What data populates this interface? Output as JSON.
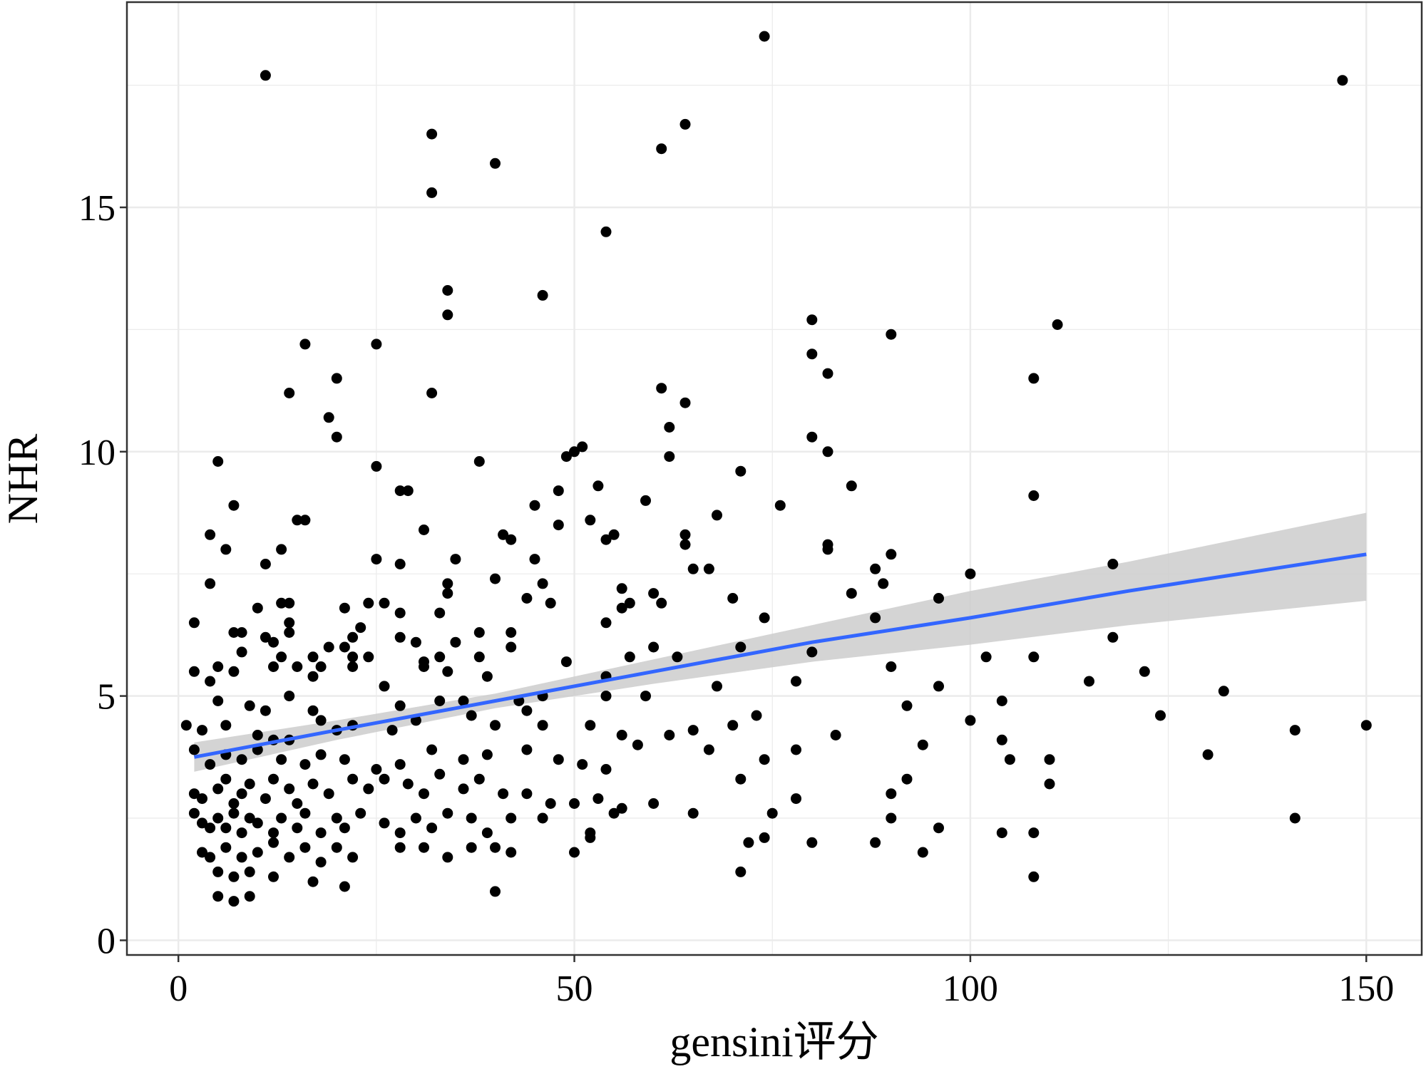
{
  "chart_data": {
    "type": "scatter",
    "xlabel": "gensini评分",
    "ylabel": "NHR",
    "xlim": [
      -6.5,
      157
    ],
    "ylim": [
      -0.3,
      19.2
    ],
    "x_ticks": [
      0,
      50,
      100,
      150
    ],
    "y_ticks": [
      0,
      5,
      10,
      15
    ],
    "x_tick_labels": [
      "0",
      "50",
      "100",
      "150"
    ],
    "y_tick_labels": [
      "0",
      "5",
      "10",
      "15"
    ],
    "grid": true,
    "legend": "none",
    "colors": {
      "points": "#000000",
      "fit_line": "#3366FF",
      "confidence_band": "#cccccc",
      "grid": "#ebebeb",
      "panel_border": "#333333"
    },
    "fit": {
      "method": "linear regression",
      "x": [
        2,
        20,
        40,
        60,
        80,
        100,
        120,
        150
      ],
      "y": [
        3.75,
        4.3,
        4.9,
        5.5,
        6.1,
        6.6,
        7.15,
        7.9
      ],
      "lower": [
        3.45,
        4.1,
        4.75,
        5.25,
        5.7,
        6.05,
        6.45,
        6.95
      ],
      "upper": [
        4.05,
        4.5,
        5.05,
        5.75,
        6.45,
        7.15,
        7.75,
        8.75
      ]
    },
    "points": [
      [
        11,
        17.7
      ],
      [
        74,
        18.5
      ],
      [
        147,
        17.6
      ],
      [
        32,
        16.5
      ],
      [
        64,
        16.7
      ],
      [
        61,
        16.2
      ],
      [
        40,
        15.9
      ],
      [
        32,
        15.3
      ],
      [
        54,
        14.5
      ],
      [
        34,
        13.3
      ],
      [
        46,
        13.2
      ],
      [
        34,
        12.8
      ],
      [
        80,
        12.7
      ],
      [
        111,
        12.6
      ],
      [
        90,
        12.4
      ],
      [
        16,
        12.2
      ],
      [
        25,
        12.2
      ],
      [
        80,
        12.0
      ],
      [
        82,
        11.6
      ],
      [
        108,
        11.5
      ],
      [
        20,
        11.5
      ],
      [
        14,
        11.2
      ],
      [
        32,
        11.2
      ],
      [
        61,
        11.3
      ],
      [
        64,
        11.0
      ],
      [
        19,
        10.7
      ],
      [
        62,
        10.5
      ],
      [
        20,
        10.3
      ],
      [
        80,
        10.3
      ],
      [
        51,
        10.1
      ],
      [
        50,
        10.0
      ],
      [
        82,
        10.0
      ],
      [
        5,
        9.8
      ],
      [
        38,
        9.8
      ],
      [
        25,
        9.7
      ],
      [
        49,
        9.9
      ],
      [
        62,
        9.9
      ],
      [
        71,
        9.6
      ],
      [
        53,
        9.3
      ],
      [
        28,
        9.2
      ],
      [
        29,
        9.2
      ],
      [
        48,
        9.2
      ],
      [
        85,
        9.3
      ],
      [
        108,
        9.1
      ],
      [
        59,
        9.0
      ],
      [
        45,
        8.9
      ],
      [
        76,
        8.9
      ],
      [
        7,
        8.9
      ],
      [
        16,
        8.6
      ],
      [
        15,
        8.6
      ],
      [
        52,
        8.6
      ],
      [
        68,
        8.7
      ],
      [
        48,
        8.5
      ],
      [
        31,
        8.4
      ],
      [
        41,
        8.3
      ],
      [
        42,
        8.2
      ],
      [
        4,
        8.3
      ],
      [
        55,
        8.3
      ],
      [
        64,
        8.3
      ],
      [
        54,
        8.2
      ],
      [
        64,
        8.1
      ],
      [
        82,
        8.1
      ],
      [
        6,
        8.0
      ],
      [
        13,
        8.0
      ],
      [
        82,
        8.0
      ],
      [
        90,
        7.9
      ],
      [
        35,
        7.8
      ],
      [
        25,
        7.8
      ],
      [
        45,
        7.8
      ],
      [
        11,
        7.7
      ],
      [
        28,
        7.7
      ],
      [
        118,
        7.7
      ],
      [
        88,
        7.6
      ],
      [
        65,
        7.6
      ],
      [
        67,
        7.6
      ],
      [
        100,
        7.5
      ],
      [
        40,
        7.4
      ],
      [
        4,
        7.3
      ],
      [
        34,
        7.3
      ],
      [
        46,
        7.3
      ],
      [
        89,
        7.3
      ],
      [
        56,
        7.2
      ],
      [
        34,
        7.1
      ],
      [
        44,
        7.0
      ],
      [
        60,
        7.1
      ],
      [
        85,
        7.1
      ],
      [
        13,
        6.9
      ],
      [
        14,
        6.9
      ],
      [
        24,
        6.9
      ],
      [
        26,
        6.9
      ],
      [
        57,
        6.9
      ],
      [
        47,
        6.9
      ],
      [
        70,
        7.0
      ],
      [
        96,
        7.0
      ],
      [
        10,
        6.8
      ],
      [
        21,
        6.8
      ],
      [
        28,
        6.7
      ],
      [
        33,
        6.7
      ],
      [
        56,
        6.8
      ],
      [
        61,
        6.9
      ],
      [
        74,
        6.6
      ],
      [
        88,
        6.6
      ],
      [
        2,
        6.5
      ],
      [
        14,
        6.5
      ],
      [
        54,
        6.5
      ],
      [
        23,
        6.4
      ],
      [
        7,
        6.3
      ],
      [
        8,
        6.3
      ],
      [
        14,
        6.3
      ],
      [
        11,
        6.2
      ],
      [
        22,
        6.2
      ],
      [
        28,
        6.2
      ],
      [
        30,
        6.1
      ],
      [
        38,
        6.3
      ],
      [
        42,
        6.3
      ],
      [
        118,
        6.2
      ],
      [
        12,
        6.1
      ],
      [
        19,
        6.0
      ],
      [
        21,
        6.0
      ],
      [
        35,
        6.1
      ],
      [
        42,
        6.0
      ],
      [
        60,
        6.0
      ],
      [
        71,
        6.0
      ],
      [
        80,
        5.9
      ],
      [
        8,
        5.9
      ],
      [
        13,
        5.8
      ],
      [
        17,
        5.8
      ],
      [
        22,
        5.8
      ],
      [
        24,
        5.8
      ],
      [
        31,
        5.7
      ],
      [
        33,
        5.8
      ],
      [
        38,
        5.8
      ],
      [
        49,
        5.7
      ],
      [
        57,
        5.8
      ],
      [
        63,
        5.8
      ],
      [
        102,
        5.8
      ],
      [
        108,
        5.8
      ],
      [
        5,
        5.6
      ],
      [
        7,
        5.5
      ],
      [
        12,
        5.6
      ],
      [
        15,
        5.6
      ],
      [
        18,
        5.6
      ],
      [
        22,
        5.6
      ],
      [
        31,
        5.6
      ],
      [
        34,
        5.5
      ],
      [
        39,
        5.4
      ],
      [
        54,
        5.4
      ],
      [
        90,
        5.6
      ],
      [
        122,
        5.5
      ],
      [
        2,
        5.5
      ],
      [
        4,
        5.3
      ],
      [
        17,
        5.4
      ],
      [
        26,
        5.2
      ],
      [
        78,
        5.3
      ],
      [
        96,
        5.2
      ],
      [
        115,
        5.3
      ],
      [
        132,
        5.1
      ],
      [
        68,
        5.2
      ],
      [
        14,
        5.0
      ],
      [
        33,
        4.9
      ],
      [
        36,
        4.9
      ],
      [
        46,
        5.0
      ],
      [
        54,
        5.0
      ],
      [
        59,
        5.0
      ],
      [
        104,
        4.9
      ],
      [
        92,
        4.8
      ],
      [
        5,
        4.9
      ],
      [
        9,
        4.8
      ],
      [
        11,
        4.7
      ],
      [
        17,
        4.7
      ],
      [
        28,
        4.8
      ],
      [
        37,
        4.6
      ],
      [
        44,
        4.7
      ],
      [
        43,
        4.9
      ],
      [
        73,
        4.6
      ],
      [
        124,
        4.6
      ],
      [
        1,
        4.4
      ],
      [
        3,
        4.3
      ],
      [
        6,
        4.4
      ],
      [
        10,
        4.2
      ],
      [
        12,
        4.1
      ],
      [
        14,
        4.1
      ],
      [
        18,
        4.5
      ],
      [
        20,
        4.3
      ],
      [
        22,
        4.4
      ],
      [
        27,
        4.3
      ],
      [
        30,
        4.5
      ],
      [
        40,
        4.4
      ],
      [
        46,
        4.4
      ],
      [
        52,
        4.4
      ],
      [
        56,
        4.2
      ],
      [
        62,
        4.2
      ],
      [
        65,
        4.3
      ],
      [
        70,
        4.4
      ],
      [
        100,
        4.5
      ],
      [
        141,
        4.3
      ],
      [
        150,
        4.4
      ],
      [
        2,
        3.9
      ],
      [
        4,
        3.6
      ],
      [
        6,
        3.8
      ],
      [
        8,
        3.7
      ],
      [
        10,
        3.9
      ],
      [
        13,
        3.7
      ],
      [
        16,
        3.6
      ],
      [
        18,
        3.8
      ],
      [
        21,
        3.7
      ],
      [
        25,
        3.5
      ],
      [
        28,
        3.6
      ],
      [
        32,
        3.9
      ],
      [
        36,
        3.7
      ],
      [
        39,
        3.8
      ],
      [
        44,
        3.9
      ],
      [
        48,
        3.7
      ],
      [
        51,
        3.6
      ],
      [
        54,
        3.5
      ],
      [
        58,
        4.0
      ],
      [
        67,
        3.9
      ],
      [
        74,
        3.7
      ],
      [
        78,
        3.9
      ],
      [
        83,
        4.2
      ],
      [
        94,
        4.0
      ],
      [
        104,
        4.1
      ],
      [
        105,
        3.7
      ],
      [
        110,
        3.7
      ],
      [
        130,
        3.8
      ],
      [
        2,
        3.0
      ],
      [
        3,
        2.9
      ],
      [
        5,
        3.1
      ],
      [
        6,
        3.3
      ],
      [
        7,
        2.8
      ],
      [
        8,
        3.0
      ],
      [
        9,
        3.2
      ],
      [
        11,
        2.9
      ],
      [
        12,
        3.3
      ],
      [
        14,
        3.1
      ],
      [
        15,
        2.8
      ],
      [
        17,
        3.2
      ],
      [
        19,
        3.0
      ],
      [
        22,
        3.3
      ],
      [
        24,
        3.1
      ],
      [
        26,
        3.3
      ],
      [
        29,
        3.2
      ],
      [
        31,
        3.0
      ],
      [
        33,
        3.4
      ],
      [
        36,
        3.1
      ],
      [
        38,
        3.3
      ],
      [
        41,
        3.0
      ],
      [
        44,
        3.0
      ],
      [
        47,
        2.8
      ],
      [
        50,
        2.8
      ],
      [
        53,
        2.9
      ],
      [
        56,
        2.7
      ],
      [
        60,
        2.8
      ],
      [
        65,
        2.6
      ],
      [
        71,
        3.3
      ],
      [
        75,
        2.6
      ],
      [
        78,
        2.9
      ],
      [
        90,
        3.0
      ],
      [
        92,
        3.3
      ],
      [
        110,
        3.2
      ],
      [
        2,
        2.6
      ],
      [
        3,
        2.4
      ],
      [
        4,
        2.3
      ],
      [
        5,
        2.5
      ],
      [
        6,
        2.3
      ],
      [
        7,
        2.6
      ],
      [
        8,
        2.2
      ],
      [
        9,
        2.5
      ],
      [
        10,
        2.4
      ],
      [
        12,
        2.2
      ],
      [
        13,
        2.5
      ],
      [
        15,
        2.3
      ],
      [
        16,
        2.6
      ],
      [
        18,
        2.2
      ],
      [
        20,
        2.5
      ],
      [
        21,
        2.3
      ],
      [
        23,
        2.6
      ],
      [
        26,
        2.4
      ],
      [
        28,
        2.2
      ],
      [
        30,
        2.5
      ],
      [
        32,
        2.3
      ],
      [
        34,
        2.6
      ],
      [
        37,
        2.5
      ],
      [
        39,
        2.2
      ],
      [
        42,
        2.5
      ],
      [
        46,
        2.5
      ],
      [
        52,
        2.2
      ],
      [
        55,
        2.6
      ],
      [
        90,
        2.5
      ],
      [
        96,
        2.3
      ],
      [
        104,
        2.2
      ],
      [
        108,
        2.2
      ],
      [
        141,
        2.5
      ],
      [
        3,
        1.8
      ],
      [
        4,
        1.7
      ],
      [
        6,
        1.9
      ],
      [
        8,
        1.7
      ],
      [
        10,
        1.8
      ],
      [
        12,
        2.0
      ],
      [
        14,
        1.7
      ],
      [
        16,
        1.9
      ],
      [
        18,
        1.6
      ],
      [
        20,
        1.9
      ],
      [
        22,
        1.7
      ],
      [
        28,
        1.9
      ],
      [
        31,
        1.9
      ],
      [
        34,
        1.7
      ],
      [
        37,
        1.9
      ],
      [
        40,
        1.9
      ],
      [
        42,
        1.8
      ],
      [
        50,
        1.8
      ],
      [
        52,
        2.1
      ],
      [
        72,
        2.0
      ],
      [
        74,
        2.1
      ],
      [
        80,
        2.0
      ],
      [
        88,
        2.0
      ],
      [
        94,
        1.8
      ],
      [
        5,
        1.4
      ],
      [
        7,
        1.3
      ],
      [
        9,
        1.4
      ],
      [
        12,
        1.3
      ],
      [
        17,
        1.2
      ],
      [
        21,
        1.1
      ],
      [
        40,
        1.0
      ],
      [
        5,
        0.9
      ],
      [
        7,
        0.8
      ],
      [
        9,
        0.9
      ],
      [
        71,
        1.4
      ],
      [
        108,
        1.3
      ]
    ]
  }
}
